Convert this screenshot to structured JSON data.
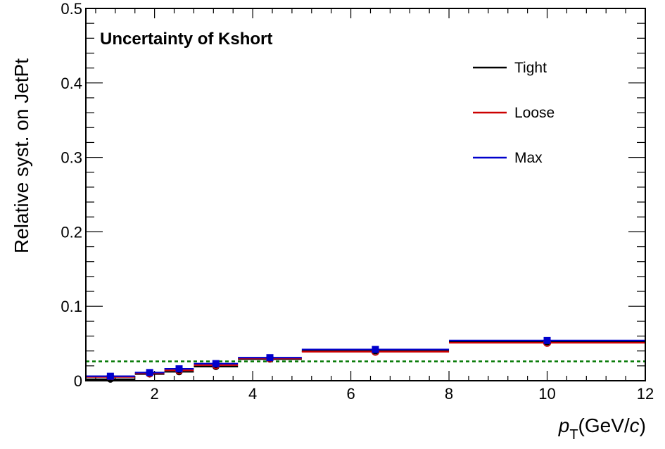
{
  "chart_data": {
    "type": "line",
    "title": "Uncertainty of Kshort",
    "xlabel": "p_T(GeV/c)",
    "xlabel_parts": {
      "p": "p",
      "sub": "T",
      "unit_open": "(GeV/",
      "c": "c",
      "unit_close": ")"
    },
    "ylabel": "Relative syst. on JetPt",
    "xlim": [
      0.6,
      12
    ],
    "ylim": [
      0,
      0.5
    ],
    "x_ticks": [
      2,
      4,
      6,
      8,
      10,
      12
    ],
    "x_tick_labels": [
      "2",
      "4",
      "6",
      "8",
      "10",
      "12"
    ],
    "y_ticks": [
      0,
      0.1,
      0.2,
      0.3,
      0.4,
      0.5
    ],
    "y_tick_labels": [
      "0",
      "0.1",
      "0.2",
      "0.3",
      "0.4",
      "0.5"
    ],
    "bins": [
      [
        0.6,
        1.6
      ],
      [
        1.6,
        2.2
      ],
      [
        2.2,
        2.8
      ],
      [
        2.8,
        3.7
      ],
      [
        3.7,
        5.0
      ],
      [
        5.0,
        8.0
      ],
      [
        8.0,
        12.0
      ]
    ],
    "bin_centers": [
      1.1,
      1.9,
      2.5,
      3.25,
      4.35,
      6.5,
      10.0
    ],
    "series": [
      {
        "name": "Tight",
        "color": "#000000",
        "marker": "circle",
        "values": [
          0.002,
          0.009,
          0.012,
          0.019,
          0.029,
          0.04,
          0.052
        ]
      },
      {
        "name": "Loose",
        "color": "#cc0000",
        "marker": "open-circle",
        "values": [
          0.005,
          0.01,
          0.014,
          0.021,
          0.03,
          0.039,
          0.051
        ]
      },
      {
        "name": "Max",
        "color": "#0000cc",
        "marker": "square",
        "values": [
          0.006,
          0.011,
          0.016,
          0.023,
          0.031,
          0.042,
          0.054
        ]
      }
    ],
    "reference_line": {
      "y": 0.026,
      "color": "#007700",
      "style": "dotted"
    },
    "legend_position": "top-right",
    "grid": false
  }
}
